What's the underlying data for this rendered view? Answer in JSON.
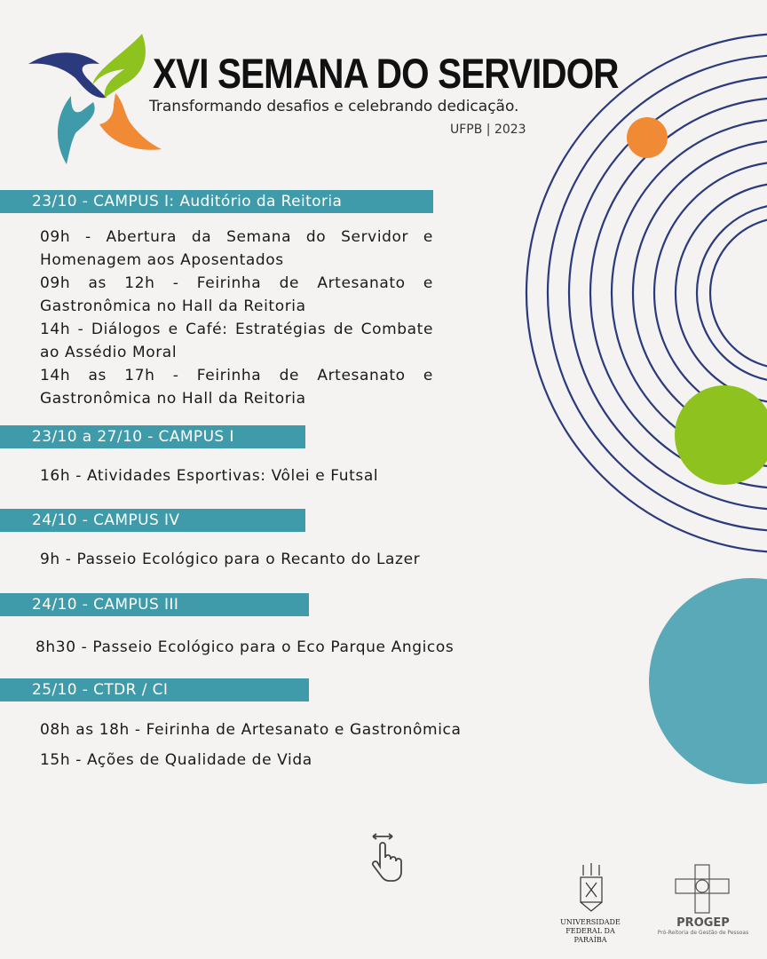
{
  "header": {
    "title": "XVI SEMANA DO SERVIDOR",
    "subtitle": "Transformando desafios e celebrando dedicação.",
    "org_year": "UFPB | 2023"
  },
  "colors": {
    "teal": "#3f9aa9",
    "navy": "#2b3a7c",
    "green": "#8dc21f",
    "orange": "#f08a35",
    "light_teal": "#5aa9b8"
  },
  "sections": [
    {
      "heading": "23/10 - CAMPUS I: Auditório da Reitoria",
      "items": [
        "09h - Abertura da Semana do Servidor e Homenagem aos Aposentados",
        "09h as 12h - Feirinha de Artesanato e Gastronômica no Hall da Reitoria",
        "14h - Diálogos e Café: Estratégias de Combate ao Assédio Moral",
        "14h as 17h - Feirinha de Artesanato e Gastronômica no Hall da Reitoria"
      ]
    },
    {
      "heading": "23/10 a 27/10 - CAMPUS I",
      "items": [
        "16h - Atividades Esportivas: Vôlei e Futsal"
      ]
    },
    {
      "heading": "24/10 - CAMPUS IV",
      "items": [
        "9h - Passeio Ecológico para o Recanto do Lazer"
      ]
    },
    {
      "heading": "24/10 - CAMPUS III",
      "items": [
        "8h30 - Passeio Ecológico para o Eco Parque Angicos"
      ]
    },
    {
      "heading": "25/10 - CTDR / CI",
      "items": [
        "08h as 18h - Feirinha de Artesanato e Gastronômica",
        "15h -  Ações de Qualidade de Vida"
      ]
    }
  ],
  "footer": {
    "swipe_icon": "swipe-hand-icon",
    "ufpb_logo": "UNIVERSIDADE FEDERAL DA PARAÍBA",
    "progep_name": "PROGEP",
    "progep_desc": "Pró-Reitoria de Gestão de Pessoas"
  }
}
